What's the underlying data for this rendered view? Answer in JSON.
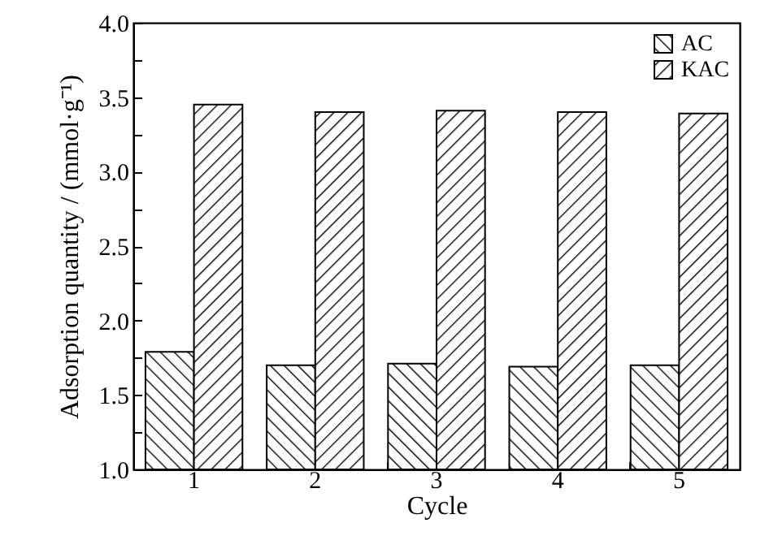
{
  "chart_data": {
    "type": "bar",
    "xlabel": "Cycle",
    "ylabel": "Adsorption quantity / (mmol·g⁻¹)",
    "categories": [
      "1",
      "2",
      "3",
      "4",
      "5"
    ],
    "series": [
      {
        "name": "AC",
        "color": "#000000",
        "values": [
          1.79,
          1.7,
          1.71,
          1.69,
          1.7
        ]
      },
      {
        "name": "KAC",
        "color": "#000000",
        "values": [
          3.45,
          3.4,
          3.41,
          3.4,
          3.39
        ]
      }
    ],
    "ylim": [
      1.0,
      4.0
    ],
    "yticks": [
      {
        "value": 1.0,
        "label": "1.0"
      },
      {
        "value": 1.25,
        "label": null
      },
      {
        "value": 1.5,
        "label": "1.5"
      },
      {
        "value": 1.75,
        "label": null
      },
      {
        "value": 2.0,
        "label": "2.0"
      },
      {
        "value": 2.25,
        "label": null
      },
      {
        "value": 2.5,
        "label": "2.5"
      },
      {
        "value": 2.75,
        "label": null
      },
      {
        "value": 3.0,
        "label": "3.0"
      },
      {
        "value": 3.25,
        "label": null
      },
      {
        "value": 3.5,
        "label": "3.5"
      },
      {
        "value": 3.75,
        "label": null
      },
      {
        "value": 4.0,
        "label": "4.0"
      }
    ],
    "legend": "top right",
    "grid": false
  }
}
